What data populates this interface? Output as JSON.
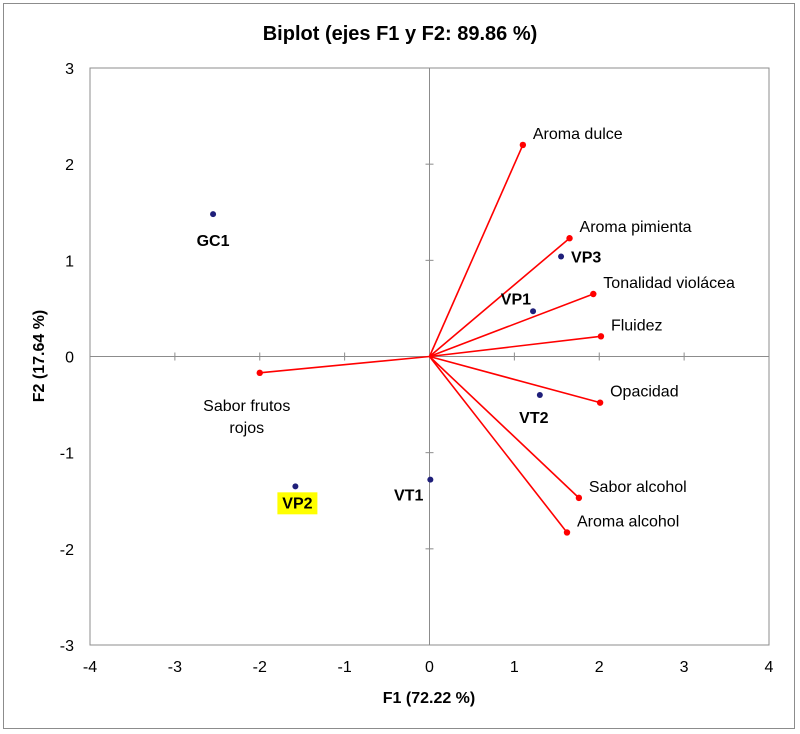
{
  "chart_data": {
    "type": "scatter",
    "title": "Biplot (ejes F1 y F2: 89.86 %)",
    "xlabel": "F1 (72.22 %)",
    "ylabel": "F2 (17.64 %)",
    "xlim": [
      -4,
      4
    ],
    "ylim": [
      -3,
      3
    ],
    "xticks": [
      "-4",
      "-3",
      "-2",
      "-1",
      "0",
      "1",
      "2",
      "3",
      "4"
    ],
    "yticks": [
      "3",
      "2",
      "1",
      "0",
      "-1",
      "-2",
      "-3"
    ],
    "grid": false,
    "variables": [
      {
        "name": "Aroma dulce",
        "x": 1.1,
        "y": 2.2,
        "label": "Aroma dulce"
      },
      {
        "name": "Aroma pimienta",
        "x": 1.65,
        "y": 1.23,
        "label": "Aroma pimienta"
      },
      {
        "name": "Tonalidad violácea",
        "x": 1.93,
        "y": 0.65,
        "label": "Tonalidad violácea"
      },
      {
        "name": "Fluidez",
        "x": 2.02,
        "y": 0.21,
        "label": "Fluidez"
      },
      {
        "name": "Opacidad",
        "x": 2.01,
        "y": -0.48,
        "label": "Opacidad"
      },
      {
        "name": "Sabor alcohol",
        "x": 1.76,
        "y": -1.47,
        "label": "Sabor alcohol"
      },
      {
        "name": "Aroma alcohol",
        "x": 1.62,
        "y": -1.83,
        "label": "Aroma alcohol"
      },
      {
        "name": "Sabor frutos rojos",
        "x": -2.0,
        "y": -0.17,
        "label_lines": [
          "Sabor frutos",
          "rojos"
        ]
      }
    ],
    "observations": [
      {
        "name": "GC1",
        "x": -2.55,
        "y": 1.48,
        "highlight": false
      },
      {
        "name": "VP3",
        "x": 1.55,
        "y": 1.04,
        "highlight": false
      },
      {
        "name": "VP1",
        "x": 1.22,
        "y": 0.47,
        "highlight": false
      },
      {
        "name": "VT2",
        "x": 1.3,
        "y": -0.4,
        "highlight": false
      },
      {
        "name": "VT1",
        "x": 0.01,
        "y": -1.28,
        "highlight": false
      },
      {
        "name": "VP2",
        "x": -1.58,
        "y": -1.35,
        "highlight": true
      }
    ],
    "colors": {
      "vector": "#ff0000",
      "observation_point": "#1f1f7a",
      "highlight": "#ffff00",
      "axis": "#8c8c8c"
    }
  }
}
